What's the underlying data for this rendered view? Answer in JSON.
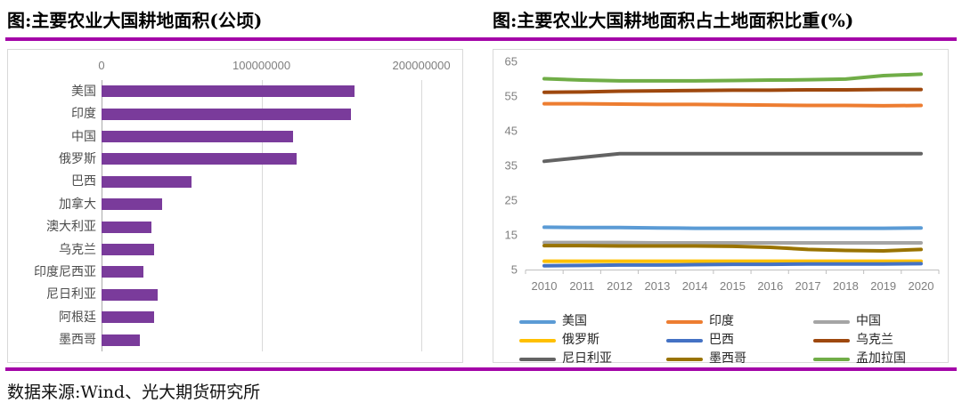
{
  "accent_color": "#A405A8",
  "source": "数据来源:Wind、光大期货研究所",
  "chart_data": [
    {
      "type": "bar",
      "title": "图:主要农业大国耕地面积(公顷)",
      "orientation": "horizontal",
      "bar_color": "#7A3B9B",
      "grid_color": "#d9d9d9",
      "axis_max": 220000000,
      "x_ticks": [
        {
          "label": "0",
          "value": 0
        },
        {
          "label": "100000000",
          "value": 100000000
        },
        {
          "label": "200000000",
          "value": 200000000
        }
      ],
      "categories": [
        "美国",
        "印度",
        "中国",
        "俄罗斯",
        "巴西",
        "加拿大",
        "澳大利亚",
        "乌克兰",
        "印度尼西亚",
        "尼日利亚",
        "阿根廷",
        "墨西哥"
      ],
      "values": [
        158000000,
        156000000,
        120000000,
        122000000,
        56000000,
        38000000,
        31000000,
        33000000,
        26000000,
        35000000,
        33000000,
        24000000
      ]
    },
    {
      "type": "line",
      "title": "图:主要农业大国耕地面积占土地面积比重(%)",
      "x": [
        "2010",
        "2011",
        "2012",
        "2013",
        "2014",
        "2015",
        "2016",
        "2017",
        "2018",
        "2019",
        "2020"
      ],
      "y_ticks": [
        5,
        15,
        25,
        35,
        45,
        55,
        65
      ],
      "ylim": [
        5,
        65
      ],
      "grid": false,
      "legend_position": "bottom",
      "series": [
        {
          "name": "美国",
          "color": "#5B9BD5",
          "values": [
            17.2,
            17.1,
            17.1,
            17.0,
            16.9,
            16.9,
            16.9,
            16.9,
            16.9,
            16.9,
            17.0
          ]
        },
        {
          "name": "印度",
          "color": "#ED7D31",
          "values": [
            52.8,
            52.8,
            52.7,
            52.6,
            52.6,
            52.5,
            52.4,
            52.3,
            52.3,
            52.2,
            52.3
          ]
        },
        {
          "name": "中国",
          "color": "#A5A5A5",
          "values": [
            12.8,
            12.8,
            12.8,
            12.7,
            12.7,
            12.7,
            12.7,
            12.7,
            12.7,
            12.7,
            12.7
          ]
        },
        {
          "name": "俄罗斯",
          "color": "#FFC000",
          "values": [
            7.4,
            7.4,
            7.4,
            7.4,
            7.4,
            7.4,
            7.4,
            7.4,
            7.4,
            7.4,
            7.4
          ]
        },
        {
          "name": "巴西",
          "color": "#4472C4",
          "values": [
            6.1,
            6.2,
            6.3,
            6.3,
            6.4,
            6.5,
            6.5,
            6.6,
            6.6,
            6.6,
            6.7
          ]
        },
        {
          "name": "乌克兰",
          "color": "#9E480E",
          "values": [
            56.1,
            56.2,
            56.4,
            56.5,
            56.6,
            56.7,
            56.7,
            56.8,
            56.8,
            56.9,
            56.9
          ]
        },
        {
          "name": "尼日利亚",
          "color": "#636363",
          "values": [
            36.2,
            37.3,
            38.4,
            38.4,
            38.4,
            38.4,
            38.4,
            38.4,
            38.4,
            38.4,
            38.4
          ]
        },
        {
          "name": "墨西哥",
          "color": "#997300",
          "values": [
            11.9,
            11.9,
            11.8,
            11.8,
            11.8,
            11.7,
            11.4,
            10.8,
            10.5,
            10.4,
            10.8
          ]
        },
        {
          "name": "孟加拉国",
          "color": "#70AD47",
          "values": [
            60.0,
            59.6,
            59.4,
            59.4,
            59.4,
            59.5,
            59.6,
            59.7,
            59.9,
            60.9,
            61.3
          ]
        }
      ]
    }
  ]
}
